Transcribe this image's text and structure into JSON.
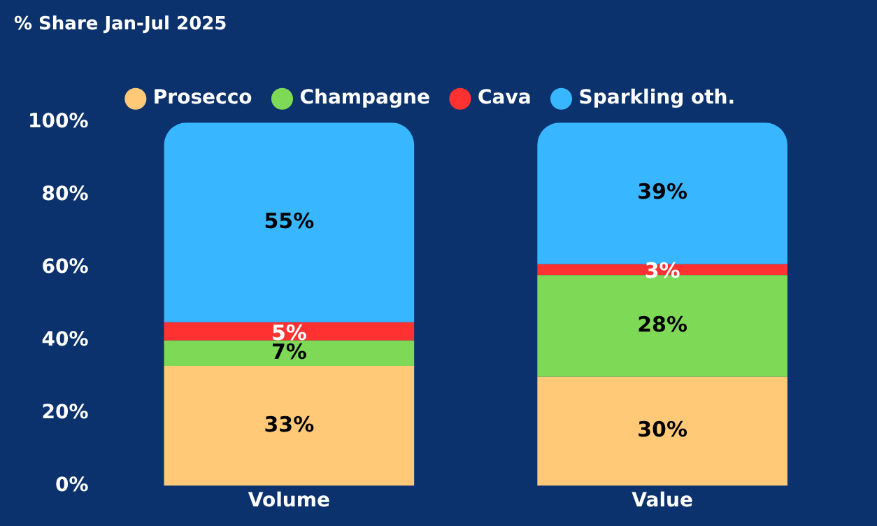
{
  "chart_data": {
    "type": "bar",
    "title": "% Share Jan-Jul 2025",
    "categories": [
      "Volume",
      "Value"
    ],
    "stacked": true,
    "series": [
      {
        "name": "Prosecco",
        "color": "#ffc977",
        "values": [
          33,
          30
        ],
        "value_labels": [
          "33%",
          "30%"
        ]
      },
      {
        "name": "Champagne",
        "color": "#7ed957",
        "values": [
          7,
          28
        ],
        "value_labels": [
          "7%",
          "28%"
        ]
      },
      {
        "name": "Cava",
        "color": "#ff3131",
        "values": [
          5,
          3
        ],
        "value_labels": [
          "5%",
          "3%"
        ]
      },
      {
        "name": "Sparkling oth.",
        "color": "#38b6ff",
        "values": [
          55,
          39
        ],
        "value_labels": [
          "55%",
          "39%"
        ]
      }
    ],
    "ylim": [
      0,
      100
    ],
    "yticks": [
      {
        "value": 0,
        "label": "0%"
      },
      {
        "value": 20,
        "label": "20%"
      },
      {
        "value": 40,
        "label": "40%"
      },
      {
        "value": 60,
        "label": "60%"
      },
      {
        "value": 80,
        "label": "80%"
      },
      {
        "value": 100,
        "label": "100%"
      }
    ],
    "grid": false,
    "legend": "top"
  }
}
